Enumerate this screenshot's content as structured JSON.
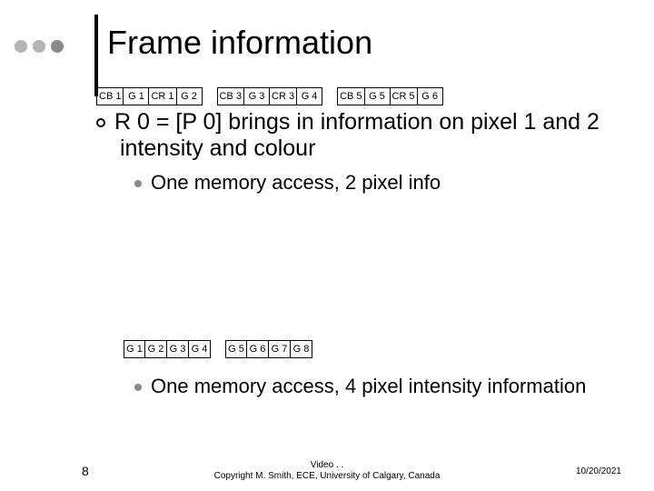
{
  "title": "Frame information",
  "dots": {
    "colors": [
      "#b4b4b4",
      "#b4b4b4",
      "#8a8a8a"
    ]
  },
  "vline_color": "#000000",
  "row1": {
    "groups": [
      [
        "CB 1",
        "G 1",
        "CR 1",
        "G 2"
      ],
      [
        "CB 3",
        "G 3",
        "CR 3",
        "G 4"
      ],
      [
        "CB 5",
        "G 5",
        "CR 5",
        "G 6"
      ]
    ],
    "cell_min_width": 28
  },
  "main_point": "R 0 = [P 0]  brings in information on pixel 1 and 2 intensity and colour",
  "sub_point_1": "One memory access, 2 pixel info",
  "row2": {
    "groups": [
      [
        "G 1",
        "G 2",
        "G 3",
        "G 4"
      ],
      [
        "G 5",
        "G 6",
        "G 7",
        "G 8"
      ]
    ],
    "cell_min_width": 24
  },
  "sub_point_2": "One memory access, 4 pixel intensity information",
  "bullet_disc_color": "#8a8a8a",
  "footer": {
    "page": "8",
    "center_line1": "Video .                              .",
    "center_line2": "Copyright M. Smith, ECE, University of Calgary, Canada",
    "date": "10/20/2021"
  },
  "typography": {
    "title_fontsize": 36,
    "body_fontsize": 25,
    "sub_fontsize": 22,
    "cell_fontsize": 11,
    "footer_fontsize": 10
  },
  "colors": {
    "background": "#ffffff",
    "text": "#000000",
    "cell_border": "#000000"
  }
}
